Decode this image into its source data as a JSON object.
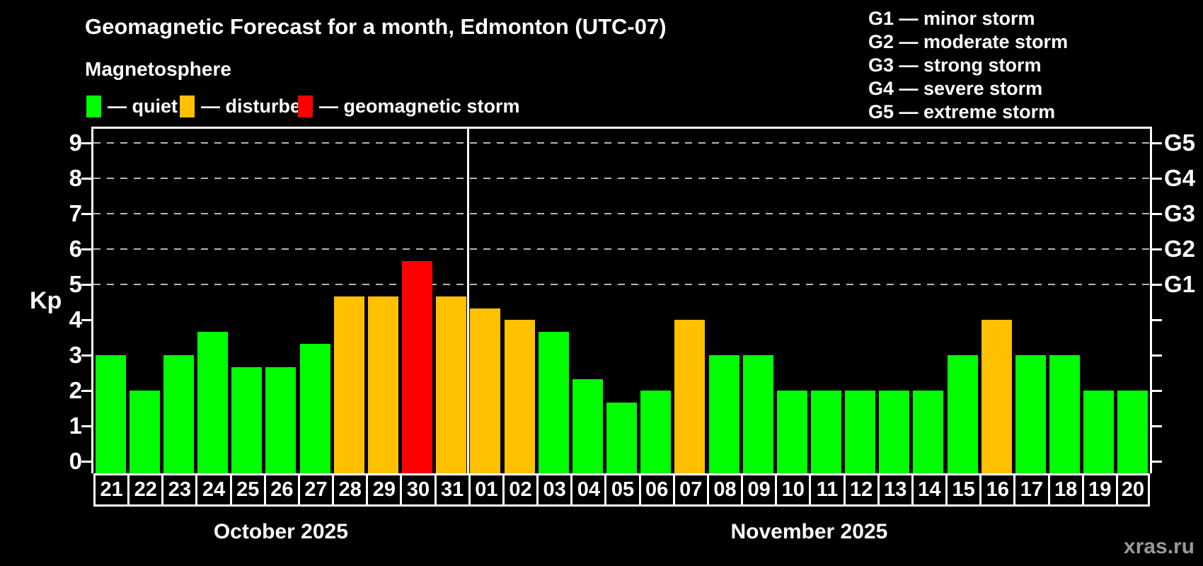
{
  "header": {
    "title": "Geomagnetic Forecast for a month, Edmonton (UTC-07)",
    "subtitle": "Magnetosphere"
  },
  "legend": {
    "items": [
      {
        "id": "quiet",
        "label": "— quiet",
        "color": "#00ff00"
      },
      {
        "id": "disturbed",
        "label": "— disturbed",
        "color": "#ffc000"
      },
      {
        "id": "storm",
        "label": "— geomagnetic storm",
        "color": "#ff0000"
      }
    ]
  },
  "g_scale_legend": {
    "items": [
      {
        "label": "G1 — minor storm"
      },
      {
        "label": "G2 — moderate storm"
      },
      {
        "label": "G3 — strong storm"
      },
      {
        "label": "G4 — severe storm"
      },
      {
        "label": "G5 — extreme storm"
      }
    ]
  },
  "chart_data": {
    "type": "bar",
    "title": "Geomagnetic Forecast for a month, Edmonton (UTC-07)",
    "ylabel": "Kp",
    "ylim": [
      0,
      9.4
    ],
    "yticks": [
      0,
      1,
      2,
      3,
      4,
      5,
      6,
      7,
      8,
      9
    ],
    "gridlines": [
      5,
      6,
      7,
      8,
      9
    ],
    "grid": "dashed horizontal at Kp 5-9",
    "right_axis_labels": [
      {
        "label": "G1",
        "kp": 5
      },
      {
        "label": "G2",
        "kp": 6
      },
      {
        "label": "G3",
        "kp": 7
      },
      {
        "label": "G4",
        "kp": 8
      },
      {
        "label": "G5",
        "kp": 9
      }
    ],
    "categories": [
      "21",
      "22",
      "23",
      "24",
      "25",
      "26",
      "27",
      "28",
      "29",
      "30",
      "31",
      "01",
      "02",
      "03",
      "04",
      "05",
      "06",
      "07",
      "08",
      "09",
      "10",
      "11",
      "12",
      "13",
      "14",
      "15",
      "16",
      "17",
      "18",
      "19",
      "20"
    ],
    "values": [
      3,
      2,
      3,
      3.67,
      2.67,
      2.67,
      3.33,
      4.67,
      4.67,
      5.67,
      4.67,
      4.33,
      4,
      3.67,
      2.33,
      1.67,
      2,
      4,
      3,
      3,
      2,
      2,
      2,
      2,
      2,
      3,
      4,
      3,
      3,
      2,
      2
    ],
    "statuses": [
      "quiet",
      "quiet",
      "quiet",
      "quiet",
      "quiet",
      "quiet",
      "quiet",
      "disturbed",
      "disturbed",
      "storm",
      "disturbed",
      "disturbed",
      "disturbed",
      "quiet",
      "quiet",
      "quiet",
      "quiet",
      "disturbed",
      "quiet",
      "quiet",
      "quiet",
      "quiet",
      "quiet",
      "quiet",
      "quiet",
      "quiet",
      "disturbed",
      "quiet",
      "quiet",
      "quiet",
      "quiet"
    ],
    "status_colors": {
      "quiet": "#00ff00",
      "disturbed": "#ffc000",
      "storm": "#ff0000"
    },
    "months": [
      {
        "label": "October 2025",
        "start_index": 0,
        "days": 11
      },
      {
        "label": "November 2025",
        "start_index": 11,
        "days": 20
      }
    ]
  },
  "watermark": "xras.ru"
}
